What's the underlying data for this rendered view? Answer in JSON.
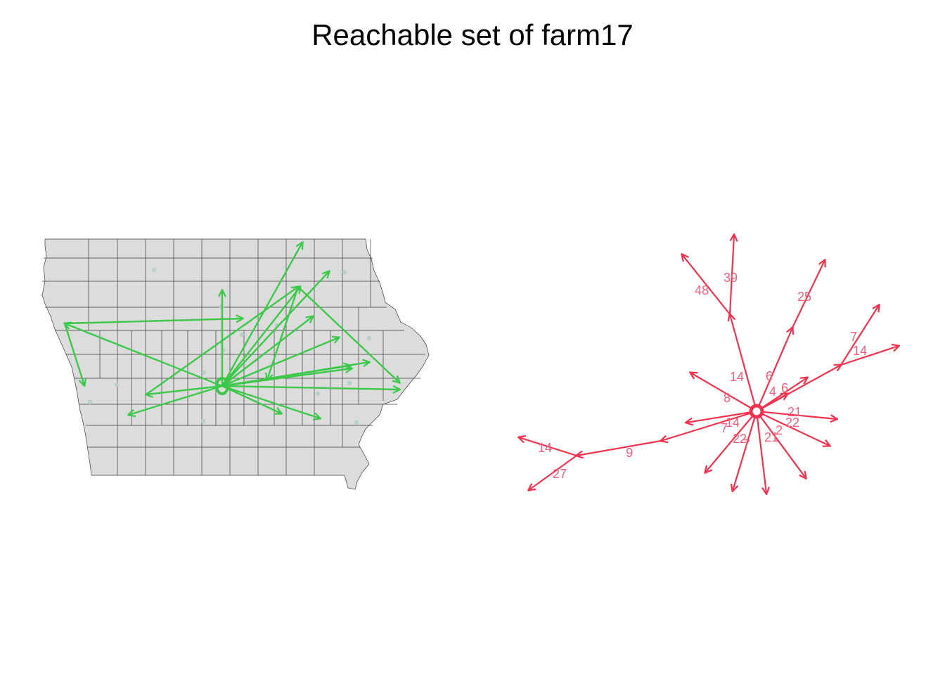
{
  "title": "Reachable set of farm17",
  "colors": {
    "map_fill": "#dcdcdc",
    "map_border": "#3a3a3a",
    "farm_dot": "#b9cfc9",
    "map_arrow": "#3cc94a",
    "network_edge": "#f0324f",
    "edge_label": "#f0607a"
  },
  "edge_labels": [
    "39",
    "48",
    "25",
    "7",
    "14",
    "14",
    "6",
    "8",
    "4",
    "6",
    "21",
    "22",
    "14",
    "7",
    "2",
    "22",
    "21",
    "7",
    "9",
    "14",
    "27"
  ]
}
